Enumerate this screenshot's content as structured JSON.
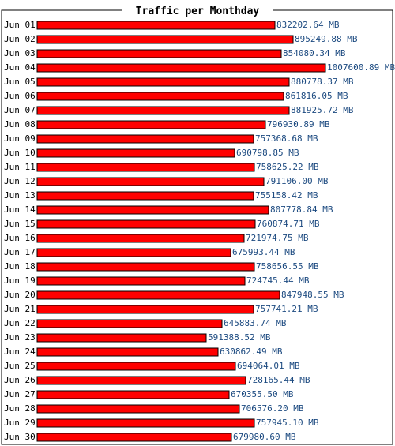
{
  "chart_data": {
    "type": "bar",
    "orientation": "horizontal",
    "title": "Traffic per Monthday",
    "unit": "MB",
    "bar_color": "#ff0000",
    "bar_border_color": "#000000",
    "label_color": "#1c4a80",
    "categories": [
      "Jun 01",
      "Jun 02",
      "Jun 03",
      "Jun 04",
      "Jun 05",
      "Jun 06",
      "Jun 07",
      "Jun 08",
      "Jun 09",
      "Jun 10",
      "Jun 11",
      "Jun 12",
      "Jun 13",
      "Jun 14",
      "Jun 15",
      "Jun 16",
      "Jun 17",
      "Jun 18",
      "Jun 19",
      "Jun 20",
      "Jun 21",
      "Jun 22",
      "Jun 23",
      "Jun 24",
      "Jun 25",
      "Jun 26",
      "Jun 27",
      "Jun 28",
      "Jun 29",
      "Jun 30"
    ],
    "values": [
      832202.64,
      895249.88,
      854080.34,
      1007600.89,
      880778.37,
      861816.05,
      881925.72,
      796930.89,
      757368.68,
      690798.85,
      758625.22,
      791106.0,
      755158.42,
      807778.84,
      760874.71,
      721974.75,
      675993.44,
      758656.55,
      724745.44,
      847948.55,
      757741.21,
      645883.74,
      591388.52,
      630862.49,
      694064.01,
      728165.44,
      670355.5,
      706576.2,
      757945.1,
      679980.6
    ],
    "value_labels": [
      "832202.64 MB",
      "895249.88 MB",
      "854080.34 MB",
      "1007600.89 MB",
      "880778.37 MB",
      "861816.05 MB",
      "881925.72 MB",
      "796930.89 MB",
      "757368.68 MB",
      "690798.85 MB",
      "758625.22 MB",
      "791106.00 MB",
      "755158.42 MB",
      "807778.84 MB",
      "760874.71 MB",
      "721974.75 MB",
      "675993.44 MB",
      "758656.55 MB",
      "724745.44 MB",
      "847948.55 MB",
      "757741.21 MB",
      "645883.74 MB",
      "591388.52 MB",
      "630862.49 MB",
      "694064.01 MB",
      "728165.44 MB",
      "670355.50 MB",
      "706576.20 MB",
      "757945.10 MB",
      "679980.60 MB"
    ]
  }
}
